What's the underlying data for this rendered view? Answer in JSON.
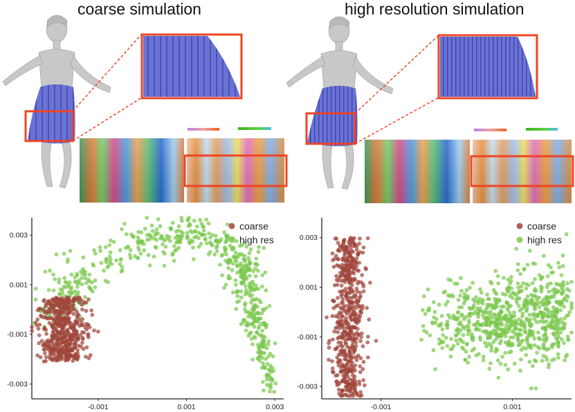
{
  "panels": [
    {
      "title": "coarse simulation"
    },
    {
      "title": "high resolution simulation"
    }
  ],
  "colors": {
    "coarse": "#a0463c",
    "highres": "#7cc84e",
    "highlight": "#ee4422",
    "cloth": "#6a72d6",
    "body": "#c8c8c8"
  },
  "chart_data": [
    {
      "type": "scatter",
      "title": "",
      "xlabel": "",
      "ylabel": "",
      "xticks": [
        "-0.001",
        "0.001",
        "0.003"
      ],
      "yticks": [
        "0.003",
        "0.001",
        "-0.001",
        "-0.003"
      ],
      "xlim": [
        -0.0025,
        0.0032
      ],
      "ylim": [
        -0.0036,
        0.0037
      ],
      "series": [
        {
          "name": "coarse",
          "color": "#a0463c",
          "n": 520,
          "shape": {
            "kind": "band",
            "cx": -0.0018,
            "cy": -0.0008,
            "rx": 0.00055,
            "ry": 0.0013,
            "spread": 0.6
          }
        },
        {
          "name": "high res",
          "color": "#7cc84e",
          "n": 620,
          "shape": {
            "kind": "arc",
            "path": [
              [
                -0.002,
                -0.0005
              ],
              [
                -0.0015,
                0.0012
              ],
              [
                -0.0002,
                0.0026
              ],
              [
                0.0012,
                0.0032
              ],
              [
                0.0022,
                0.0022
              ],
              [
                0.0024,
                0.0008
              ],
              [
                0.0026,
                -0.0008
              ],
              [
                0.0029,
                -0.0034
              ]
            ]
          }
        }
      ],
      "legend": {
        "position": "top-right",
        "entries": [
          "coarse",
          "high res"
        ]
      }
    },
    {
      "type": "scatter",
      "title": "",
      "xlabel": "",
      "ylabel": "",
      "xticks": [
        "-0.001",
        "0.001"
      ],
      "yticks": [
        "0.003",
        "0.001",
        "-0.001",
        "-0.003"
      ],
      "xlim": [
        -0.0019,
        0.0019
      ],
      "ylim": [
        -0.0035,
        0.0038
      ],
      "series": [
        {
          "name": "coarse",
          "color": "#a0463c",
          "n": 560,
          "shape": {
            "kind": "band",
            "cx": -0.0015,
            "cy": -0.0002,
            "rx": 0.00022,
            "ry": 0.0032,
            "spread": 0.3
          }
        },
        {
          "name": "high res",
          "color": "#7cc84e",
          "n": 760,
          "shape": {
            "kind": "blob",
            "cx": 0.0007,
            "cy": -0.0002,
            "rx": 0.0011,
            "ry": 0.0022
          }
        }
      ],
      "legend": {
        "position": "top-right",
        "entries": [
          "coarse",
          "high res"
        ]
      }
    }
  ]
}
